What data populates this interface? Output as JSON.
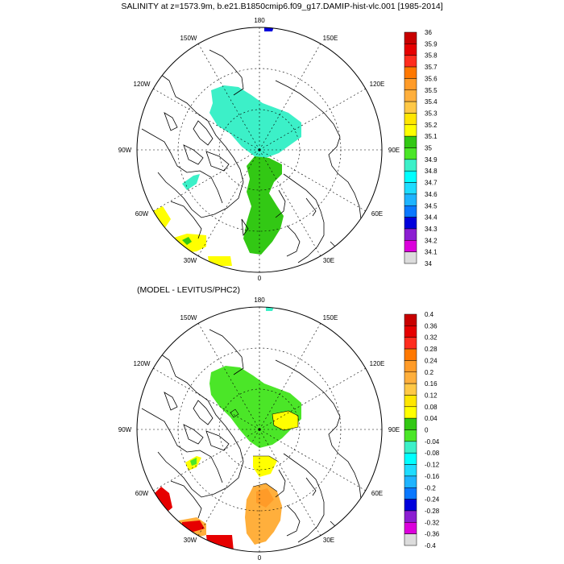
{
  "panels": [
    {
      "title": "SALINITY at z=1573.9m, b.e21.B1850cmip6.f09_g17.DAMIP-hist-vlc.001 [1985-2014]",
      "lon_labels": {
        "top": "180",
        "top_left": "150W",
        "top_right": "150E",
        "upper_left": "120W",
        "upper_right": "120E",
        "left": "90W",
        "right": "90E",
        "lower_left": "60W",
        "lower_right": "60E",
        "bottom_left": "30W",
        "bottom_right": "30E",
        "bottom": "0"
      },
      "colorbar": {
        "labels": [
          "36",
          "35.9",
          "35.8",
          "35.7",
          "35.6",
          "35.5",
          "35.4",
          "35.3",
          "35.2",
          "35.1",
          "35",
          "34.9",
          "34.8",
          "34.7",
          "34.6",
          "34.5",
          "34.4",
          "34.3",
          "34.2",
          "34.1",
          "34"
        ],
        "colors": [
          "#c80000",
          "#e60000",
          "#ff2d1e",
          "#ff7800",
          "#ff9b28",
          "#ffaf3c",
          "#ffc846",
          "#ffe600",
          "#ffff00",
          "#32c814",
          "#4be628",
          "#3cf0c8",
          "#00ffff",
          "#1edcff",
          "#1eb4ff",
          "#0a78ff",
          "#0000dc",
          "#8c1ed2",
          "#dc00dc",
          "#dcdcdc"
        ]
      }
    },
    {
      "title": "(MODEL - LEVITUS/PHC2)",
      "lon_labels": {
        "top": "180",
        "top_left": "150W",
        "top_right": "150E",
        "upper_left": "120W",
        "upper_right": "120E",
        "left": "90W",
        "right": "90E",
        "lower_left": "60W",
        "lower_right": "60E",
        "bottom_left": "30W",
        "bottom_right": "30E",
        "bottom": "0"
      },
      "colorbar": {
        "labels": [
          "0.4",
          "0.36",
          "0.32",
          "0.28",
          "0.24",
          "0.2",
          "0.16",
          "0.12",
          "0.08",
          "0.04",
          "0",
          "-0.04",
          "-0.08",
          "-0.12",
          "-0.16",
          "-0.2",
          "-0.24",
          "-0.28",
          "-0.32",
          "-0.36",
          "-0.4"
        ],
        "colors": [
          "#c80000",
          "#e60000",
          "#ff2d1e",
          "#ff7800",
          "#ff9b28",
          "#ffaf3c",
          "#ffc846",
          "#ffe600",
          "#ffff00",
          "#32c814",
          "#4be628",
          "#3cf0c8",
          "#00ffff",
          "#1edcff",
          "#1eb4ff",
          "#0a78ff",
          "#0000dc",
          "#8c1ed2",
          "#dc00dc",
          "#dcdcdc"
        ]
      }
    }
  ],
  "map_fields": {
    "top": [
      {
        "name": "cyan-region",
        "color": "#3cf0c8"
      },
      {
        "name": "green-region",
        "color": "#32c814"
      },
      {
        "name": "yellow-patch",
        "color": "#ffff00"
      },
      {
        "name": "blue-patch",
        "color": "#0000dc"
      }
    ],
    "bottom": [
      {
        "name": "green-region",
        "color": "#4be628"
      },
      {
        "name": "yellow-region",
        "color": "#ffff00"
      },
      {
        "name": "orange-region",
        "color": "#ffaf3c"
      },
      {
        "name": "red-patch",
        "color": "#e60000"
      }
    ]
  }
}
